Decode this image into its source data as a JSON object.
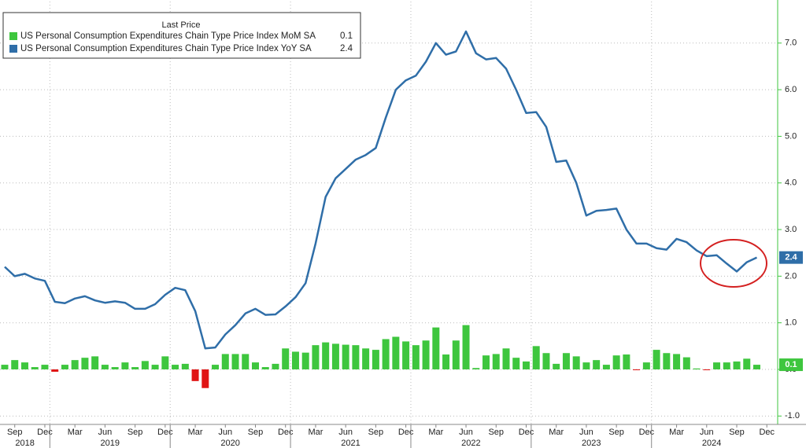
{
  "chart_data": {
    "type": "bar-line",
    "legend_title": "Last Price",
    "x": [
      "2018-08",
      "2018-09",
      "2018-10",
      "2018-11",
      "2018-12",
      "2019-01",
      "2019-02",
      "2019-03",
      "2019-04",
      "2019-05",
      "2019-06",
      "2019-07",
      "2019-08",
      "2019-09",
      "2019-10",
      "2019-11",
      "2019-12",
      "2020-01",
      "2020-02",
      "2020-03",
      "2020-04",
      "2020-05",
      "2020-06",
      "2020-07",
      "2020-08",
      "2020-09",
      "2020-10",
      "2020-11",
      "2020-12",
      "2021-01",
      "2021-02",
      "2021-03",
      "2021-04",
      "2021-05",
      "2021-06",
      "2021-07",
      "2021-08",
      "2021-09",
      "2021-10",
      "2021-11",
      "2021-12",
      "2022-01",
      "2022-02",
      "2022-03",
      "2022-04",
      "2022-05",
      "2022-06",
      "2022-07",
      "2022-08",
      "2022-09",
      "2022-10",
      "2022-11",
      "2022-12",
      "2023-01",
      "2023-02",
      "2023-03",
      "2023-04",
      "2023-05",
      "2023-06",
      "2023-07",
      "2023-08",
      "2023-09",
      "2023-10",
      "2023-11",
      "2023-12",
      "2024-01",
      "2024-02",
      "2024-03",
      "2024-04",
      "2024-05",
      "2024-06",
      "2024-07",
      "2024-08",
      "2024-09",
      "2024-10",
      "2024-11"
    ],
    "xticks": [
      {
        "value": "2018-09",
        "label": "Sep"
      },
      {
        "value": "2018-12",
        "label": "Dec"
      },
      {
        "value": "2019-03",
        "label": "Mar"
      },
      {
        "value": "2019-06",
        "label": "Jun"
      },
      {
        "value": "2019-09",
        "label": "Sep"
      },
      {
        "value": "2019-12",
        "label": "Dec"
      },
      {
        "value": "2020-03",
        "label": "Mar"
      },
      {
        "value": "2020-06",
        "label": "Jun"
      },
      {
        "value": "2020-09",
        "label": "Sep"
      },
      {
        "value": "2020-12",
        "label": "Dec"
      },
      {
        "value": "2021-03",
        "label": "Mar"
      },
      {
        "value": "2021-06",
        "label": "Jun"
      },
      {
        "value": "2021-09",
        "label": "Sep"
      },
      {
        "value": "2021-12",
        "label": "Dec"
      },
      {
        "value": "2022-03",
        "label": "Mar"
      },
      {
        "value": "2022-06",
        "label": "Jun"
      },
      {
        "value": "2022-09",
        "label": "Sep"
      },
      {
        "value": "2022-12",
        "label": "Dec"
      },
      {
        "value": "2023-03",
        "label": "Mar"
      },
      {
        "value": "2023-06",
        "label": "Jun"
      },
      {
        "value": "2023-09",
        "label": "Sep"
      },
      {
        "value": "2023-12",
        "label": "Dec"
      },
      {
        "value": "2024-03",
        "label": "Mar"
      },
      {
        "value": "2024-06",
        "label": "Jun"
      },
      {
        "value": "2024-09",
        "label": "Sep"
      },
      {
        "value": "2024-12",
        "label": "Dec"
      }
    ],
    "year_ticks": [
      "2018",
      "2019",
      "2020",
      "2021",
      "2022",
      "2023",
      "2024"
    ],
    "ylim": [
      -1.18,
      7.89
    ],
    "yticks": [
      {
        "value": -1,
        "label": "-1.0"
      },
      {
        "value": 0,
        "label": "0.0"
      },
      {
        "value": 1,
        "label": "1.0"
      },
      {
        "value": 2,
        "label": "2.0"
      },
      {
        "value": 3,
        "label": "3.0"
      },
      {
        "value": 4,
        "label": "4.0"
      },
      {
        "value": 5,
        "label": "5.0"
      },
      {
        "value": 6,
        "label": "6.0"
      },
      {
        "value": 7,
        "label": "7.0"
      }
    ],
    "grid": true,
    "legend_position": "upper left",
    "series": [
      {
        "name": "US Personal Consumption Expenditures Chain Type Price Index MoM SA",
        "type": "bar",
        "color": "#3ec63e",
        "negative_color": "#e01414",
        "values": [
          0.1,
          0.2,
          0.15,
          0.05,
          0.1,
          -0.05,
          0.1,
          0.2,
          0.25,
          0.28,
          0.1,
          0.05,
          0.15,
          0.05,
          0.18,
          0.1,
          0.28,
          0.1,
          0.12,
          -0.25,
          -0.4,
          0.1,
          0.33,
          0.33,
          0.33,
          0.15,
          0.05,
          0.12,
          0.45,
          0.38,
          0.36,
          0.52,
          0.58,
          0.55,
          0.53,
          0.52,
          0.45,
          0.42,
          0.65,
          0.7,
          0.6,
          0.52,
          0.62,
          0.9,
          0.32,
          0.62,
          0.95,
          0.03,
          0.3,
          0.33,
          0.45,
          0.25,
          0.17,
          0.5,
          0.35,
          0.12,
          0.35,
          0.28,
          0.15,
          0.2,
          0.1,
          0.3,
          0.32,
          -0.01,
          0.15,
          0.42,
          0.35,
          0.33,
          0.26,
          0.02,
          -0.01,
          0.15,
          0.15,
          0.17,
          0.23,
          0.1
        ]
      },
      {
        "name": "US Personal Consumption Expenditures Chain Type Price Index YoY SA",
        "type": "line",
        "color": "#2f6ea8",
        "values": [
          2.2,
          2.0,
          2.05,
          1.95,
          1.9,
          1.45,
          1.42,
          1.52,
          1.57,
          1.48,
          1.43,
          1.46,
          1.43,
          1.3,
          1.3,
          1.4,
          1.6,
          1.75,
          1.7,
          1.25,
          0.45,
          0.47,
          0.75,
          0.95,
          1.2,
          1.3,
          1.17,
          1.18,
          1.35,
          1.55,
          1.85,
          2.7,
          3.7,
          4.1,
          4.3,
          4.5,
          4.6,
          4.75,
          5.4,
          6.0,
          6.2,
          6.3,
          6.6,
          7.0,
          6.75,
          6.82,
          7.25,
          6.78,
          6.65,
          6.68,
          6.45,
          6.0,
          5.5,
          5.52,
          5.2,
          4.45,
          4.48,
          4.0,
          3.3,
          3.4,
          3.42,
          3.45,
          3.0,
          2.7,
          2.7,
          2.6,
          2.57,
          2.8,
          2.73,
          2.55,
          2.43,
          2.45,
          2.27,
          2.1,
          2.3,
          2.4
        ]
      }
    ]
  }
}
